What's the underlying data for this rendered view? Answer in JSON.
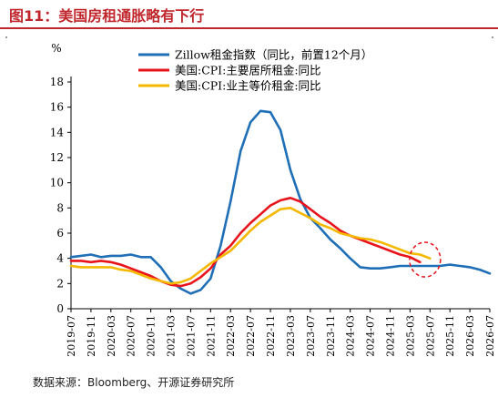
{
  "figure_title": "图11：美国房租通胀略有下行",
  "source_note": "数据来源：Bloomberg、开源证券研究所",
  "chart_data": {
    "type": "line",
    "unit": "%",
    "ylim": [
      0,
      18
    ],
    "yticks": [
      0,
      2,
      4,
      6,
      8,
      10,
      12,
      14,
      16,
      18
    ],
    "x_tick_labels": [
      "2019-07",
      "2019-11",
      "2020-03",
      "2020-07",
      "2020-11",
      "2021-03",
      "2021-07",
      "2021-11",
      "2022-03",
      "2022-07",
      "2022-11",
      "2023-03",
      "2023-07",
      "2023-11",
      "2024-03",
      "2024-07",
      "2024-11",
      "2025-03",
      "2025-07",
      "2025-11",
      "2026-03",
      "2026-07"
    ],
    "grid": false,
    "legend_position": "top-right",
    "annotation": "dashed red circle around 2025-07",
    "series": [
      {
        "name": "Zillow租金指数（同比，前置12个月）",
        "color": "#1f6fb7",
        "x": [
          "2019-07",
          "2019-09",
          "2019-11",
          "2020-01",
          "2020-03",
          "2020-05",
          "2020-07",
          "2020-09",
          "2020-11",
          "2021-01",
          "2021-03",
          "2021-05",
          "2021-07",
          "2021-09",
          "2021-11",
          "2022-01",
          "2022-03",
          "2022-05",
          "2022-07",
          "2022-09",
          "2022-11",
          "2023-01",
          "2023-03",
          "2023-05",
          "2023-07",
          "2023-09",
          "2023-11",
          "2024-01",
          "2024-03",
          "2024-05",
          "2024-07",
          "2024-09",
          "2024-11",
          "2025-01",
          "2025-03",
          "2025-05",
          "2025-07",
          "2025-09",
          "2025-11",
          "2026-01",
          "2026-03",
          "2026-05",
          "2026-07"
        ],
        "values": [
          4.1,
          4.2,
          4.3,
          4.1,
          4.2,
          4.2,
          4.3,
          4.1,
          4.1,
          3.3,
          2.2,
          1.6,
          1.2,
          1.5,
          2.4,
          5.0,
          8.5,
          12.5,
          14.8,
          15.7,
          15.6,
          14.2,
          11.0,
          8.7,
          7.2,
          6.4,
          5.5,
          4.8,
          4.0,
          3.3,
          3.2,
          3.2,
          3.3,
          3.4,
          3.4,
          3.4,
          3.4,
          3.4,
          3.5,
          3.4,
          3.3,
          3.1,
          2.8
        ]
      },
      {
        "name": "美国:CPI:主要居所租金:同比",
        "color": "#e8141c",
        "x": [
          "2019-07",
          "2019-09",
          "2019-11",
          "2020-01",
          "2020-03",
          "2020-05",
          "2020-07",
          "2020-09",
          "2020-11",
          "2021-01",
          "2021-03",
          "2021-05",
          "2021-07",
          "2021-09",
          "2021-11",
          "2022-01",
          "2022-03",
          "2022-05",
          "2022-07",
          "2022-09",
          "2022-11",
          "2023-01",
          "2023-03",
          "2023-05",
          "2023-07",
          "2023-09",
          "2023-11",
          "2024-01",
          "2024-03",
          "2024-05",
          "2024-07",
          "2024-09",
          "2024-11",
          "2025-01",
          "2025-03",
          "2025-05"
        ],
        "values": [
          3.8,
          3.8,
          3.7,
          3.8,
          3.7,
          3.5,
          3.2,
          2.9,
          2.6,
          2.2,
          1.9,
          1.8,
          2.0,
          2.5,
          3.2,
          4.3,
          5.0,
          6.0,
          6.8,
          7.5,
          8.2,
          8.6,
          8.8,
          8.5,
          7.9,
          7.3,
          6.8,
          6.2,
          5.8,
          5.5,
          5.2,
          4.9,
          4.6,
          4.3,
          4.1,
          3.7
        ]
      },
      {
        "name": "美国:CPI:业主等价租金:同比",
        "color": "#f5b800",
        "x": [
          "2019-07",
          "2019-09",
          "2019-11",
          "2020-01",
          "2020-03",
          "2020-05",
          "2020-07",
          "2020-09",
          "2020-11",
          "2021-01",
          "2021-03",
          "2021-05",
          "2021-07",
          "2021-09",
          "2021-11",
          "2022-01",
          "2022-03",
          "2022-05",
          "2022-07",
          "2022-09",
          "2022-11",
          "2023-01",
          "2023-03",
          "2023-05",
          "2023-07",
          "2023-09",
          "2023-11",
          "2024-01",
          "2024-03",
          "2024-05",
          "2024-07",
          "2024-09",
          "2024-11",
          "2025-01",
          "2025-03",
          "2025-05",
          "2025-07"
        ],
        "values": [
          3.4,
          3.3,
          3.3,
          3.3,
          3.3,
          3.1,
          3.0,
          2.7,
          2.4,
          2.2,
          2.0,
          2.1,
          2.4,
          3.0,
          3.6,
          4.1,
          4.6,
          5.4,
          6.2,
          6.9,
          7.4,
          7.9,
          8.0,
          7.6,
          7.2,
          6.7,
          6.4,
          6.0,
          5.8,
          5.6,
          5.5,
          5.3,
          5.0,
          4.7,
          4.4,
          4.3,
          4.0
        ]
      }
    ]
  }
}
